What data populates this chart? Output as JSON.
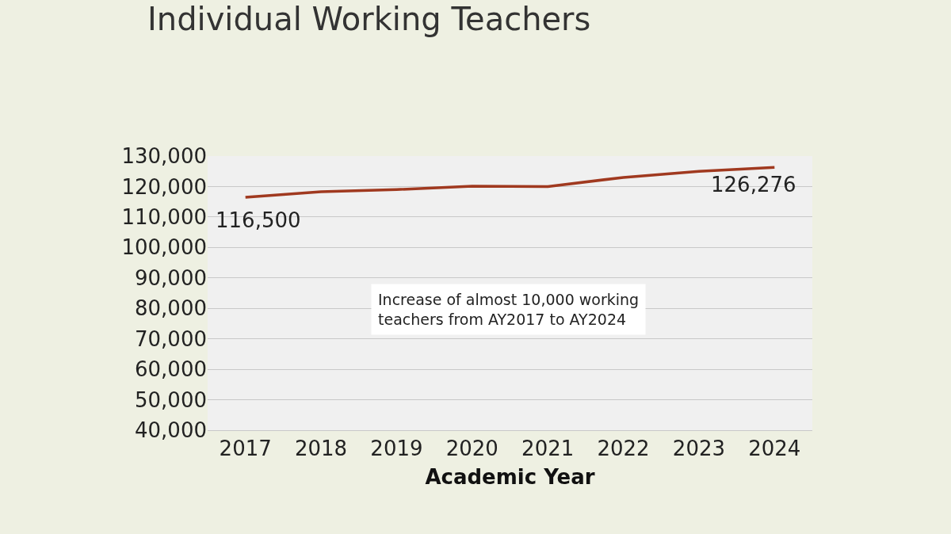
{
  "chart_data": {
    "type": "line",
    "title": "Individual Working Teachers",
    "xlabel": "Academic Year",
    "categories": [
      "2017",
      "2018",
      "2019",
      "2020",
      "2021",
      "2022",
      "2023",
      "2024"
    ],
    "series": [
      {
        "color": "#a0391f",
        "values": [
          116500,
          118300,
          119000,
          120100,
          120000,
          123000,
          125000,
          126276
        ],
        "value_labels": [
          "116,500",
          null,
          null,
          null,
          null,
          null,
          null,
          "126,276"
        ]
      }
    ],
    "ylim": [
      40000,
      130000
    ],
    "yticks": [
      {
        "value": 40000,
        "label": "40,000"
      },
      {
        "value": 50000,
        "label": "50,000"
      },
      {
        "value": 60000,
        "label": "60,000"
      },
      {
        "value": 70000,
        "label": "70,000"
      },
      {
        "value": 80000,
        "label": "80,000"
      },
      {
        "value": 90000,
        "label": "90,000"
      },
      {
        "value": 100000,
        "label": "100,000"
      },
      {
        "value": 110000,
        "label": "110,000"
      },
      {
        "value": 120000,
        "label": "120,000"
      },
      {
        "value": 130000,
        "label": "130,000"
      }
    ],
    "annotations": [
      "Increase of almost 10,000 working\nteachers from AY2017 to AY2024"
    ],
    "grid": "y",
    "legend": false,
    "marker": "none",
    "line_style": "solid"
  }
}
